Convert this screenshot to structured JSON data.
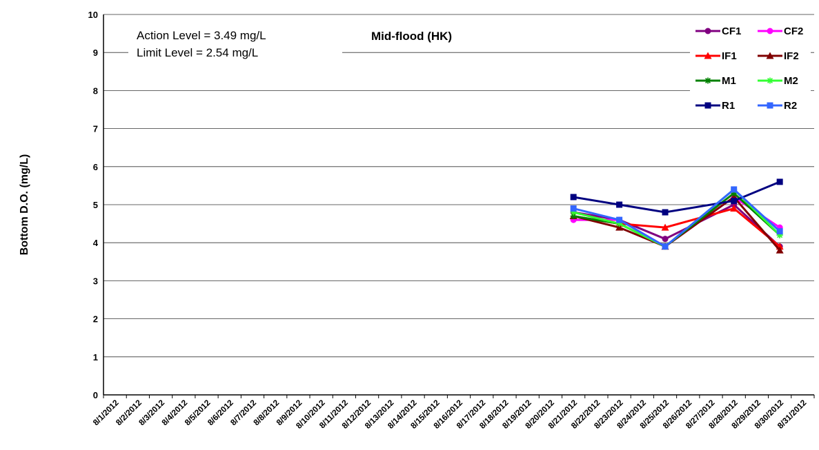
{
  "chart_data": {
    "type": "line",
    "title": "Mid-flood (HK)",
    "ylabel": "Bottom D.O. (mg/L)",
    "xlabel": "",
    "ylim": [
      0,
      10
    ],
    "yticks": [
      0,
      1,
      2,
      3,
      4,
      5,
      6,
      7,
      8,
      9,
      10
    ],
    "grid": "horizontal",
    "legend_position": "top-right",
    "annotations": [
      "Action Level = 3.49 mg/L",
      "Limit Level = 2.54 mg/L"
    ],
    "categories": [
      "8/1/2012",
      "8/2/2012",
      "8/3/2012",
      "8/4/2012",
      "8/5/2012",
      "8/6/2012",
      "8/7/2012",
      "8/8/2012",
      "8/9/2012",
      "8/10/2012",
      "8/11/2012",
      "8/12/2012",
      "8/13/2012",
      "8/14/2012",
      "8/15/2012",
      "8/16/2012",
      "8/17/2012",
      "8/18/2012",
      "8/19/2012",
      "8/20/2012",
      "8/21/2012",
      "8/22/2012",
      "8/23/2012",
      "8/24/2012",
      "8/25/2012",
      "8/26/2012",
      "8/27/2012",
      "8/28/2012",
      "8/29/2012",
      "8/30/2012",
      "8/31/2012"
    ],
    "series": [
      {
        "name": "CF1",
        "color": "#800080",
        "marker": "circle",
        "points": [
          [
            "8/21/2012",
            4.8
          ],
          [
            "8/23/2012",
            4.6
          ],
          [
            "8/25/2012",
            4.1
          ],
          [
            "8/28/2012",
            5.0
          ],
          [
            "8/30/2012",
            3.9
          ]
        ]
      },
      {
        "name": "CF2",
        "color": "#ff00ff",
        "marker": "circle",
        "points": [
          [
            "8/21/2012",
            4.6
          ],
          [
            "8/23/2012",
            4.6
          ],
          [
            "8/25/2012",
            3.9
          ],
          [
            "8/28/2012",
            5.2
          ],
          [
            "8/30/2012",
            4.4
          ]
        ]
      },
      {
        "name": "IF1",
        "color": "#ff0000",
        "marker": "triangle",
        "points": [
          [
            "8/21/2012",
            4.7
          ],
          [
            "8/23/2012",
            4.5
          ],
          [
            "8/25/2012",
            4.4
          ],
          [
            "8/28/2012",
            4.9
          ],
          [
            "8/30/2012",
            3.9
          ]
        ]
      },
      {
        "name": "IF2",
        "color": "#800000",
        "marker": "triangle",
        "points": [
          [
            "8/21/2012",
            4.7
          ],
          [
            "8/23/2012",
            4.4
          ],
          [
            "8/25/2012",
            3.9
          ],
          [
            "8/28/2012",
            5.2
          ],
          [
            "8/30/2012",
            3.8
          ]
        ]
      },
      {
        "name": "M1",
        "color": "#008000",
        "marker": "star",
        "points": [
          [
            "8/21/2012",
            4.7
          ],
          [
            "8/23/2012",
            4.5
          ],
          [
            "8/25/2012",
            3.9
          ],
          [
            "8/28/2012",
            5.3
          ],
          [
            "8/30/2012",
            4.2
          ]
        ]
      },
      {
        "name": "M2",
        "color": "#33ff33",
        "marker": "star",
        "points": [
          [
            "8/21/2012",
            4.8
          ],
          [
            "8/23/2012",
            4.5
          ],
          [
            "8/25/2012",
            3.9
          ],
          [
            "8/28/2012",
            5.4
          ],
          [
            "8/30/2012",
            4.2
          ]
        ]
      },
      {
        "name": "R1",
        "color": "#000080",
        "marker": "square",
        "points": [
          [
            "8/21/2012",
            5.2
          ],
          [
            "8/23/2012",
            5.0
          ],
          [
            "8/25/2012",
            4.8
          ],
          [
            "8/28/2012",
            5.1
          ],
          [
            "8/30/2012",
            5.6
          ]
        ]
      },
      {
        "name": "R2",
        "color": "#3366ff",
        "marker": "square",
        "points": [
          [
            "8/21/2012",
            4.9
          ],
          [
            "8/23/2012",
            4.6
          ],
          [
            "8/25/2012",
            3.9
          ],
          [
            "8/28/2012",
            5.4
          ],
          [
            "8/30/2012",
            4.3
          ]
        ]
      }
    ]
  }
}
